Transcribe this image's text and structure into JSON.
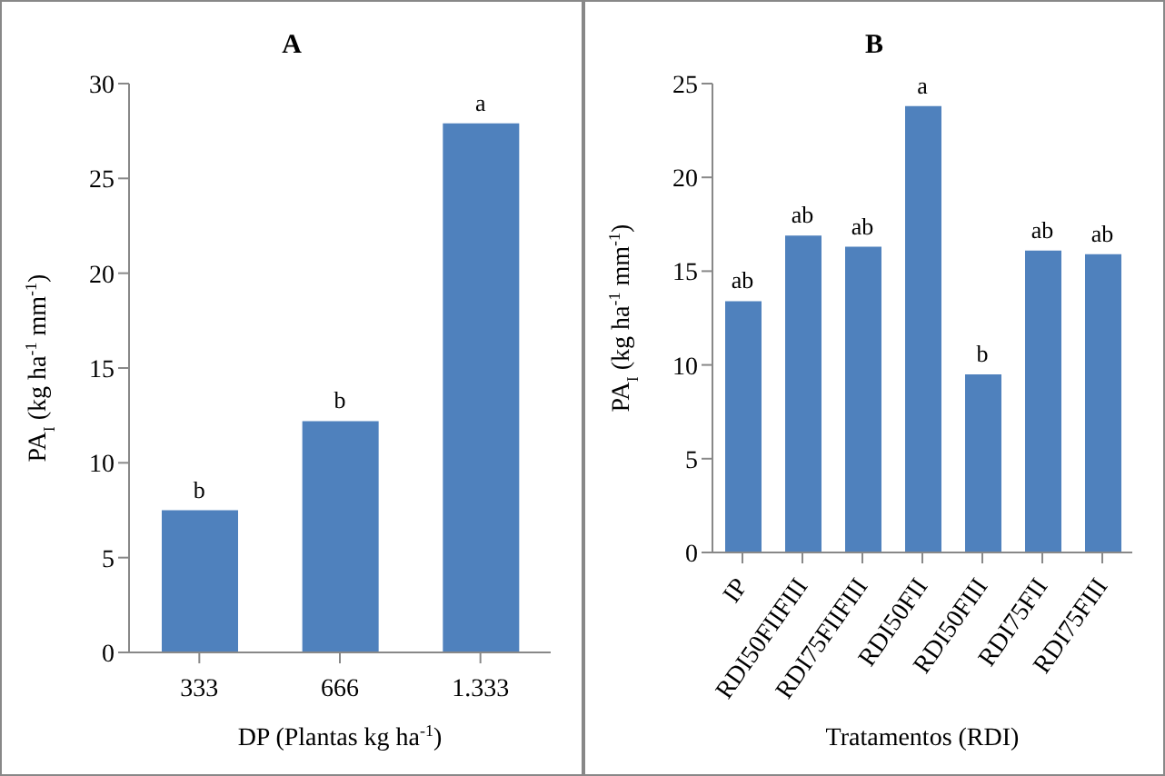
{
  "chart_data": [
    {
      "type": "bar",
      "title": "A",
      "xlabel": "DP (Plantas kg ha$^{-1}$)",
      "ylabel": "PA$_{I}$ (kg ha$^{-1}$ mm$^{-1}$)",
      "categories": [
        "333",
        "666",
        "1.333"
      ],
      "values": [
        7.5,
        12.2,
        27.9
      ],
      "color": "#4f81bd",
      "ylim": [
        0,
        30
      ],
      "yticks": [
        0,
        5,
        10,
        15,
        20,
        25,
        30
      ],
      "grid": false,
      "legend": false,
      "annotations": [
        {
          "text": "b",
          "x": "333",
          "y": 7.5
        },
        {
          "text": "b",
          "x": "666",
          "y": 12.2
        },
        {
          "text": "a",
          "x": "1.333",
          "y": 27.9
        }
      ]
    },
    {
      "type": "bar",
      "title": "B",
      "xlabel": "Tratamentos (RDI)",
      "ylabel": "PA$_{I}$ (kg ha$^{-1}$ mm$^{-1}$)",
      "categories": [
        "IP",
        "RDI50FIIFIII",
        "RDI75FIIFIII",
        "RDI50FII",
        "RDI50FIII",
        "RDI75FII",
        "RDI75FIII"
      ],
      "values": [
        13.4,
        16.9,
        16.3,
        23.8,
        9.5,
        16.1,
        15.9
      ],
      "color": "#4f81bd",
      "ylim": [
        0,
        25
      ],
      "yticks": [
        0,
        5,
        10,
        15,
        20,
        25
      ],
      "grid": false,
      "legend": false,
      "annotations": [
        {
          "text": "ab",
          "x": "IP",
          "y": 13.4
        },
        {
          "text": "ab",
          "x": "RDI50FIIFIII",
          "y": 16.9
        },
        {
          "text": "ab",
          "x": "RDI75FIIFIII",
          "y": 16.3
        },
        {
          "text": "a",
          "x": "RDI50FII",
          "y": 23.8
        },
        {
          "text": "b",
          "x": "RDI50FIII",
          "y": 9.5
        },
        {
          "text": "ab",
          "x": "RDI75FII",
          "y": 16.1
        },
        {
          "text": "ab",
          "x": "RDI75FIII",
          "y": 15.9
        }
      ]
    }
  ]
}
